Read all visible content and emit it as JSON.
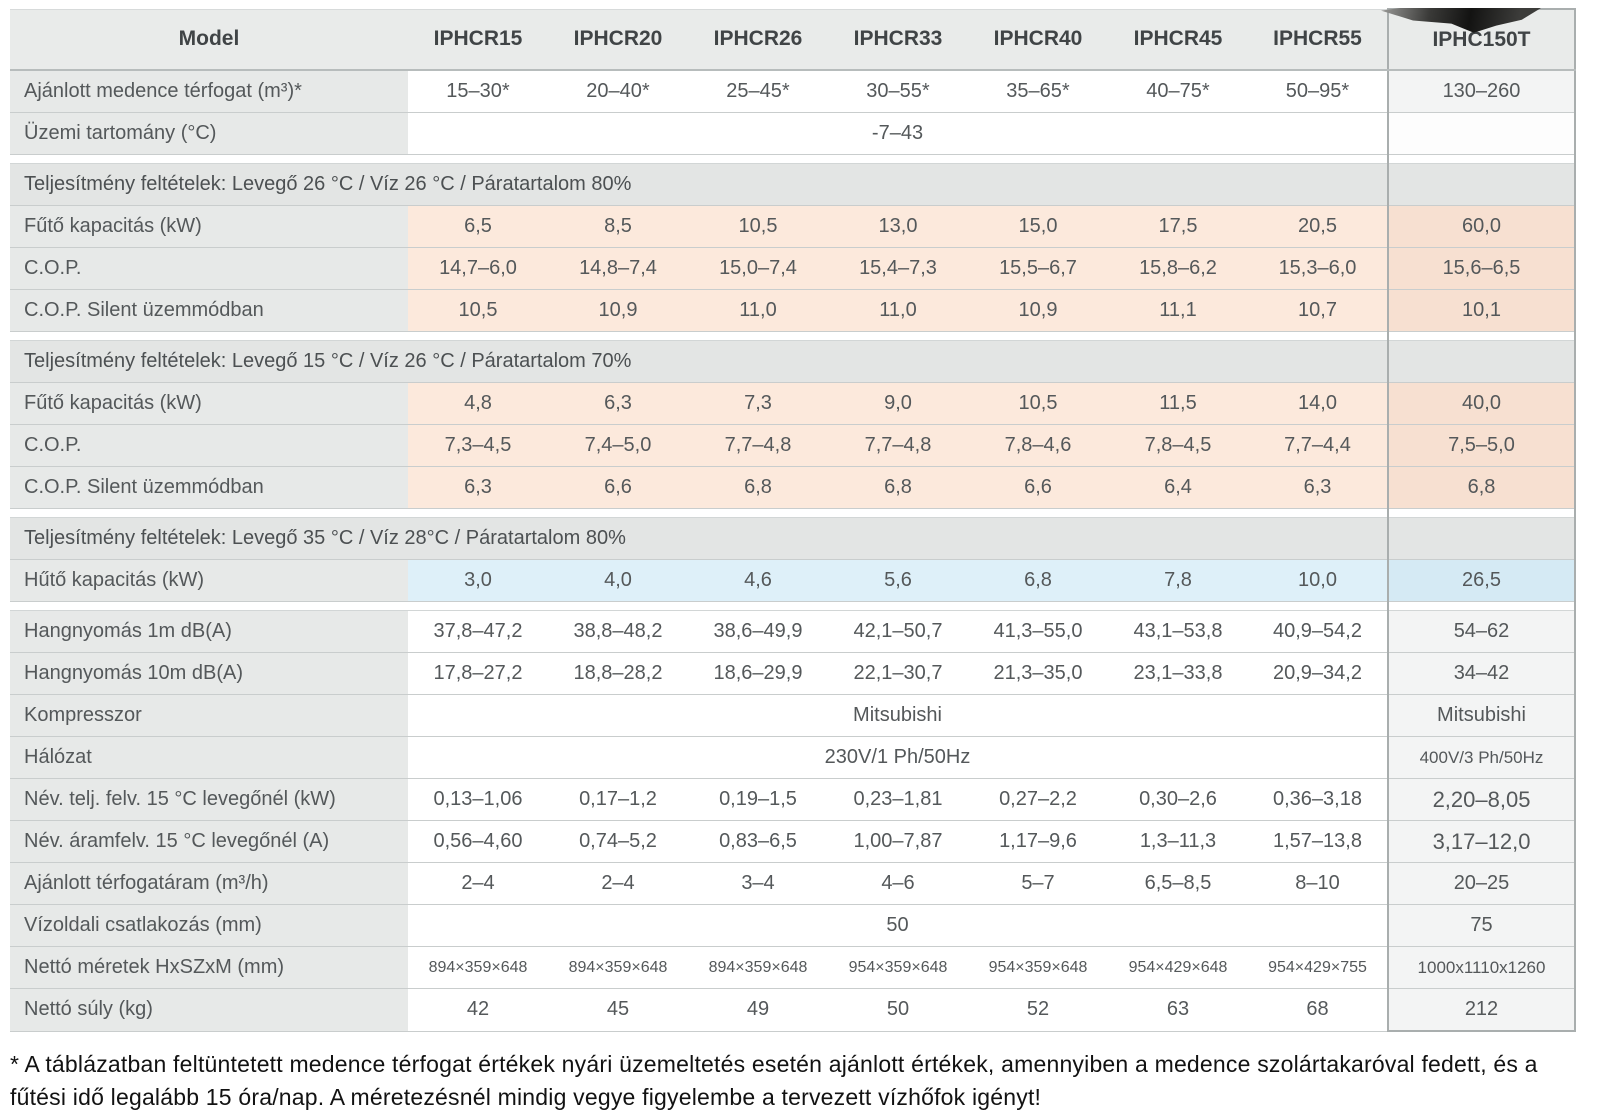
{
  "table": {
    "columns": [
      "Model",
      "IPHCR15",
      "IPHCR20",
      "IPHCR26",
      "IPHCR33",
      "IPHCR40",
      "IPHCR45",
      "IPHCR55",
      "IPHC150T"
    ],
    "rows": [
      {
        "kind": "data",
        "label": "Ajánlott medence térfogat (m³)*",
        "values": [
          "15–30*",
          "20–40*",
          "25–45*",
          "30–55*",
          "35–65*",
          "40–75*",
          "50–95*"
        ],
        "last": "130–260",
        "tint": "white"
      },
      {
        "kind": "merged",
        "label": "Üzemi tartomány (°C)",
        "value": "-7–43",
        "last": "",
        "last_plain": true
      },
      {
        "kind": "section",
        "label": "Teljesítmény feltételek: Levegő 26 °C / Víz 26 °C / Páratartalom 80%",
        "gap_before": true
      },
      {
        "kind": "data",
        "label": "Fűtő kapacitás (kW)",
        "values": [
          "6,5",
          "8,5",
          "10,5",
          "13,0",
          "15,0",
          "17,5",
          "20,5"
        ],
        "last": "60,0",
        "tint": "peach"
      },
      {
        "kind": "data",
        "label": "C.O.P.",
        "values": [
          "14,7–6,0",
          "14,8–7,4",
          "15,0–7,4",
          "15,4–7,3",
          "15,5–6,7",
          "15,8–6,2",
          "15,3–6,0"
        ],
        "last": "15,6–6,5",
        "tint": "peach"
      },
      {
        "kind": "data",
        "label": "C.O.P. Silent üzemmódban",
        "values": [
          "10,5",
          "10,9",
          "11,0",
          "11,0",
          "10,9",
          "11,1",
          "10,7"
        ],
        "last": "10,1",
        "tint": "peach"
      },
      {
        "kind": "section",
        "label": "Teljesítmény feltételek: Levegő 15 °C / Víz 26 °C / Páratartalom 70%",
        "gap_before": true
      },
      {
        "kind": "data",
        "label": "Fűtő kapacitás (kW)",
        "values": [
          "4,8",
          "6,3",
          "7,3",
          "9,0",
          "10,5",
          "11,5",
          "14,0"
        ],
        "last": "40,0",
        "tint": "peach"
      },
      {
        "kind": "data",
        "label": "C.O.P.",
        "values": [
          "7,3–4,5",
          "7,4–5,0",
          "7,7–4,8",
          "7,7–4,8",
          "7,8–4,6",
          "7,8–4,5",
          "7,7–4,4"
        ],
        "last": "7,5–5,0",
        "tint": "peach"
      },
      {
        "kind": "data",
        "label": "C.O.P. Silent üzemmódban",
        "values": [
          "6,3",
          "6,6",
          "6,8",
          "6,8",
          "6,6",
          "6,4",
          "6,3"
        ],
        "last": "6,8",
        "tint": "peach"
      },
      {
        "kind": "section",
        "label": "Teljesítmény feltételek: Levegő 35 °C / Víz 28°C / Páratartalom 80%",
        "gap_before": true
      },
      {
        "kind": "data",
        "label": "Hűtő kapacitás (kW)",
        "values": [
          "3,0",
          "4,0",
          "4,6",
          "5,6",
          "6,8",
          "7,8",
          "10,0"
        ],
        "last": "26,5",
        "tint": "blue"
      },
      {
        "kind": "data",
        "label": "Hangnyomás 1m dB(A)",
        "values": [
          "37,8–47,2",
          "38,8–48,2",
          "38,6–49,9",
          "42,1–50,7",
          "41,3–55,0",
          "43,1–53,8",
          "40,9–54,2"
        ],
        "last": "54–62",
        "tint": "white",
        "gap_before": true
      },
      {
        "kind": "data",
        "label": "Hangnyomás 10m dB(A)",
        "values": [
          "17,8–27,2",
          "18,8–28,2",
          "18,6–29,9",
          "22,1–30,7",
          "21,3–35,0",
          "23,1–33,8",
          "20,9–34,2"
        ],
        "last": "34–42",
        "tint": "white"
      },
      {
        "kind": "merged",
        "label": "Kompresszor",
        "value": "Mitsubishi",
        "last": "Mitsubishi"
      },
      {
        "kind": "merged",
        "label": "Hálózat",
        "value": "230V/1 Ph/50Hz",
        "last": "400V/3 Ph/50Hz",
        "last_small": true
      },
      {
        "kind": "data",
        "label": "Név. telj. felv. 15 °C levegőnél (kW)",
        "values": [
          "0,13–1,06",
          "0,17–1,2",
          "0,19–1,5",
          "0,23–1,81",
          "0,27–2,2",
          "0,30–2,6",
          "0,36–3,18"
        ],
        "last": "2,20–8,05",
        "tint": "white",
        "last_big": true
      },
      {
        "kind": "data",
        "label": "Név. áramfelv. 15 °C levegőnél (A)",
        "values": [
          "0,56–4,60",
          "0,74–5,2",
          "0,83–6,5",
          "1,00–7,87",
          "1,17–9,6",
          "1,3–11,3",
          "1,57–13,8"
        ],
        "last": "3,17–12,0",
        "tint": "white",
        "last_big": true
      },
      {
        "kind": "data",
        "label": "Ajánlott térfogatáram (m³/h)",
        "values": [
          "2–4",
          "2–4",
          "3–4",
          "4–6",
          "5–7",
          "6,5–8,5",
          "8–10"
        ],
        "last": "20–25",
        "tint": "white"
      },
      {
        "kind": "merged",
        "label": "Vízoldali csatlakozás (mm)",
        "value": "50",
        "last": "75"
      },
      {
        "kind": "data",
        "label": "Nettó méretek HxSZxM (mm)",
        "values": [
          "894×359×648",
          "894×359×648",
          "894×359×648",
          "954×359×648",
          "954×359×648",
          "954×429×648",
          "954×429×755"
        ],
        "last": "1000x1110x1260",
        "tint": "white",
        "small": true,
        "last_small": true
      },
      {
        "kind": "data",
        "label": "Nettó súly (kg)",
        "values": [
          "42",
          "45",
          "49",
          "50",
          "52",
          "63",
          "68"
        ],
        "last": "212",
        "tint": "white"
      }
    ],
    "colors": {
      "header_bg": "#e9ebea",
      "label_bg": "#e7e9e8",
      "section_bg": "#e3e5e4",
      "heating_row_bg": "#fce9dc",
      "cooling_row_bg": "#def0f9",
      "last_column_border": "#a9aeae"
    }
  },
  "footnote": "* A táblázatban feltüntetett medence térfogat értékek nyári üzemeltetés esetén ajánlott értékek, amennyiben a medence szolártakaróval fedett, és a fűtési idő legalább 15 óra/nap. A méretezésnél mindig vegye figyelembe a tervezett vízhőfok igényt!"
}
